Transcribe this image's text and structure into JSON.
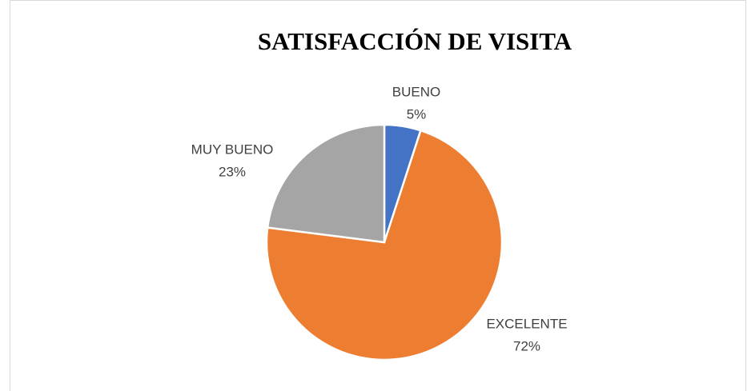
{
  "chart_data": {
    "type": "pie",
    "title": "SATISFACCIÓN DE VISITA",
    "categories": [
      "BUENO",
      "EXCELENTE",
      "MUY BUENO"
    ],
    "values": [
      5,
      72,
      23
    ],
    "value_labels": [
      "5%",
      "72%",
      "23%"
    ],
    "colors": [
      "#4472c4",
      "#ed7d31",
      "#a5a5a5"
    ]
  }
}
